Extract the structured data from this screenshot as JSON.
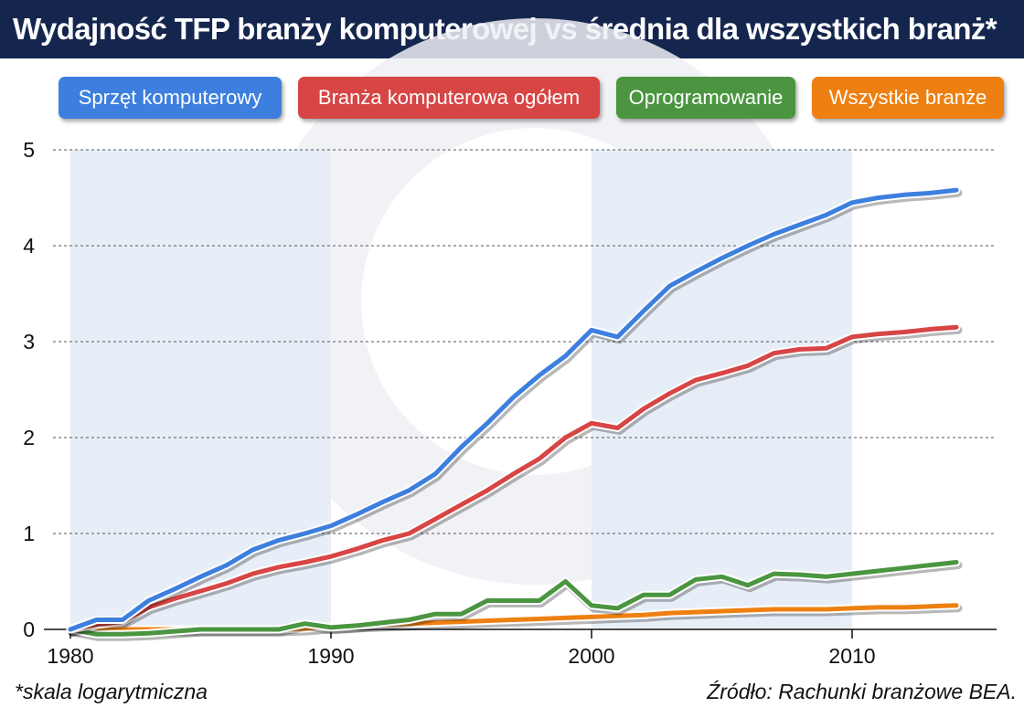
{
  "title": "Wydajność TFP branży komputerowej vs średnia dla wszystkich branż*",
  "footnote": "*skala logarytmiczna",
  "source": "Źródło: Rachunki branżowe BEA.",
  "colors": {
    "title_bg": "#14254e",
    "band": "#e4ecf6",
    "watermark": "#eef0f4"
  },
  "chart_data": {
    "type": "line",
    "xlim": [
      1980,
      2015
    ],
    "ylim": [
      0,
      5
    ],
    "x_ticks": [
      1980,
      1990,
      2000,
      2010
    ],
    "y_ticks": [
      0,
      1,
      2,
      3,
      4,
      5
    ],
    "grid": "horizontal dashed",
    "legend_position": "top",
    "shaded_periods": [
      [
        1980,
        1990
      ],
      [
        2000,
        2010
      ]
    ],
    "series": [
      {
        "name": "Sprzęt komputerowy",
        "color": "#3d7fde",
        "x": [
          1980,
          1981,
          1982,
          1983,
          1984,
          1985,
          1986,
          1987,
          1988,
          1989,
          1990,
          1991,
          1992,
          1993,
          1994,
          1995,
          1996,
          1997,
          1998,
          1999,
          2000,
          2001,
          2002,
          2003,
          2004,
          2005,
          2006,
          2007,
          2008,
          2009,
          2010,
          2011,
          2012,
          2013,
          2014
        ],
        "values": [
          0,
          0.1,
          0.1,
          0.3,
          0.42,
          0.55,
          0.67,
          0.83,
          0.93,
          1.0,
          1.08,
          1.2,
          1.33,
          1.45,
          1.62,
          1.9,
          2.15,
          2.42,
          2.65,
          2.85,
          3.12,
          3.05,
          3.32,
          3.58,
          3.73,
          3.87,
          4.0,
          4.12,
          4.22,
          4.32,
          4.45,
          4.5,
          4.53,
          4.55,
          4.58
        ]
      },
      {
        "name": "Branża komputerowa ogółem",
        "color": "#d74545",
        "x": [
          1980,
          1981,
          1982,
          1983,
          1984,
          1985,
          1986,
          1987,
          1988,
          1989,
          1990,
          1991,
          1992,
          1993,
          1994,
          1995,
          1996,
          1997,
          1998,
          1999,
          2000,
          2001,
          2002,
          2003,
          2004,
          2005,
          2006,
          2007,
          2008,
          2009,
          2010,
          2011,
          2012,
          2013,
          2014
        ],
        "values": [
          0,
          0.05,
          0.08,
          0.23,
          0.32,
          0.4,
          0.48,
          0.58,
          0.65,
          0.7,
          0.76,
          0.84,
          0.93,
          1.0,
          1.15,
          1.3,
          1.45,
          1.62,
          1.78,
          2.0,
          2.15,
          2.1,
          2.3,
          2.46,
          2.6,
          2.67,
          2.75,
          2.88,
          2.92,
          2.93,
          3.05,
          3.08,
          3.1,
          3.13,
          3.15
        ]
      },
      {
        "name": "Oprogramowanie",
        "color": "#4b9541",
        "x": [
          1980,
          1981,
          1982,
          1983,
          1984,
          1985,
          1986,
          1987,
          1988,
          1989,
          1990,
          1991,
          1992,
          1993,
          1994,
          1995,
          1996,
          1997,
          1998,
          1999,
          2000,
          2001,
          2002,
          2003,
          2004,
          2005,
          2006,
          2007,
          2008,
          2009,
          2010,
          2011,
          2012,
          2013,
          2014
        ],
        "values": [
          0,
          -0.05,
          -0.05,
          -0.04,
          -0.02,
          0,
          0,
          0,
          0,
          0.06,
          0.02,
          0.04,
          0.07,
          0.1,
          0.16,
          0.16,
          0.3,
          0.3,
          0.3,
          0.5,
          0.25,
          0.22,
          0.36,
          0.36,
          0.52,
          0.55,
          0.46,
          0.58,
          0.57,
          0.55,
          0.58,
          0.61,
          0.64,
          0.67,
          0.7
        ]
      },
      {
        "name": "Wszystkie branże",
        "color": "#ee8011",
        "x": [
          1980,
          1981,
          1982,
          1983,
          1984,
          1985,
          1986,
          1987,
          1988,
          1989,
          1990,
          1991,
          1992,
          1993,
          1994,
          1995,
          1996,
          1997,
          1998,
          1999,
          2000,
          2001,
          2002,
          2003,
          2004,
          2005,
          2006,
          2007,
          2008,
          2009,
          2010,
          2011,
          2012,
          2013,
          2014
        ],
        "values": [
          0,
          0,
          0,
          0,
          0,
          0,
          0,
          0,
          0,
          0.01,
          0.03,
          0.04,
          0.05,
          0.06,
          0.07,
          0.08,
          0.09,
          0.1,
          0.11,
          0.12,
          0.13,
          0.14,
          0.15,
          0.17,
          0.18,
          0.19,
          0.2,
          0.21,
          0.21,
          0.21,
          0.22,
          0.23,
          0.23,
          0.24,
          0.25
        ]
      }
    ]
  }
}
